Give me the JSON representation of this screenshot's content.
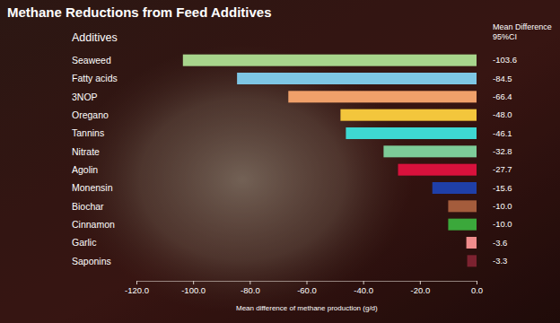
{
  "chart_data": {
    "type": "bar",
    "orientation": "horizontal",
    "title": "Methane Reductions from Feed Additives",
    "y_label": "Additives",
    "x_label": "Mean difference of methane production (g/d)",
    "annotations": [
      "Mean Difference",
      "95%CI"
    ],
    "categories": [
      "Seaweed",
      "Fatty acids",
      "3NOP",
      "Oregano",
      "Tannins",
      "Nitrate",
      "Agolin",
      "Monensin",
      "Biochar",
      "Cinnamon",
      "Garlic",
      "Saponins"
    ],
    "values": [
      -103.6,
      -84.5,
      -66.4,
      -48.0,
      -46.1,
      -32.8,
      -27.7,
      -15.6,
      -10.0,
      -10.0,
      -3.6,
      -3.3
    ],
    "value_labels": [
      "-103.6",
      "-84.5",
      "-66.4",
      "-48.0",
      "-46.1",
      "-32.8",
      "-27.7",
      "-15.6",
      "-10.0",
      "-10.0",
      "-3.6",
      "-3.3"
    ],
    "colors": [
      "#a8d58c",
      "#7ec6e4",
      "#f0a06a",
      "#f3c63c",
      "#3ed8d2",
      "#7dcb98",
      "#d8113c",
      "#1f3fa8",
      "#a45c3c",
      "#3ba83b",
      "#f08c8c",
      "#7c2230"
    ],
    "xlim": [
      -120,
      0
    ],
    "xticks": [
      {
        "value": -120,
        "label": "-120.0"
      },
      {
        "value": -100,
        "label": "-100.0"
      },
      {
        "value": -80,
        "label": "-80.0"
      },
      {
        "value": -60,
        "label": "-60.0"
      },
      {
        "value": -40,
        "label": "-40.0"
      },
      {
        "value": -20,
        "label": "-20.0"
      },
      {
        "value": 0,
        "label": "0.0"
      }
    ],
    "grid": false,
    "data_labels": true
  }
}
